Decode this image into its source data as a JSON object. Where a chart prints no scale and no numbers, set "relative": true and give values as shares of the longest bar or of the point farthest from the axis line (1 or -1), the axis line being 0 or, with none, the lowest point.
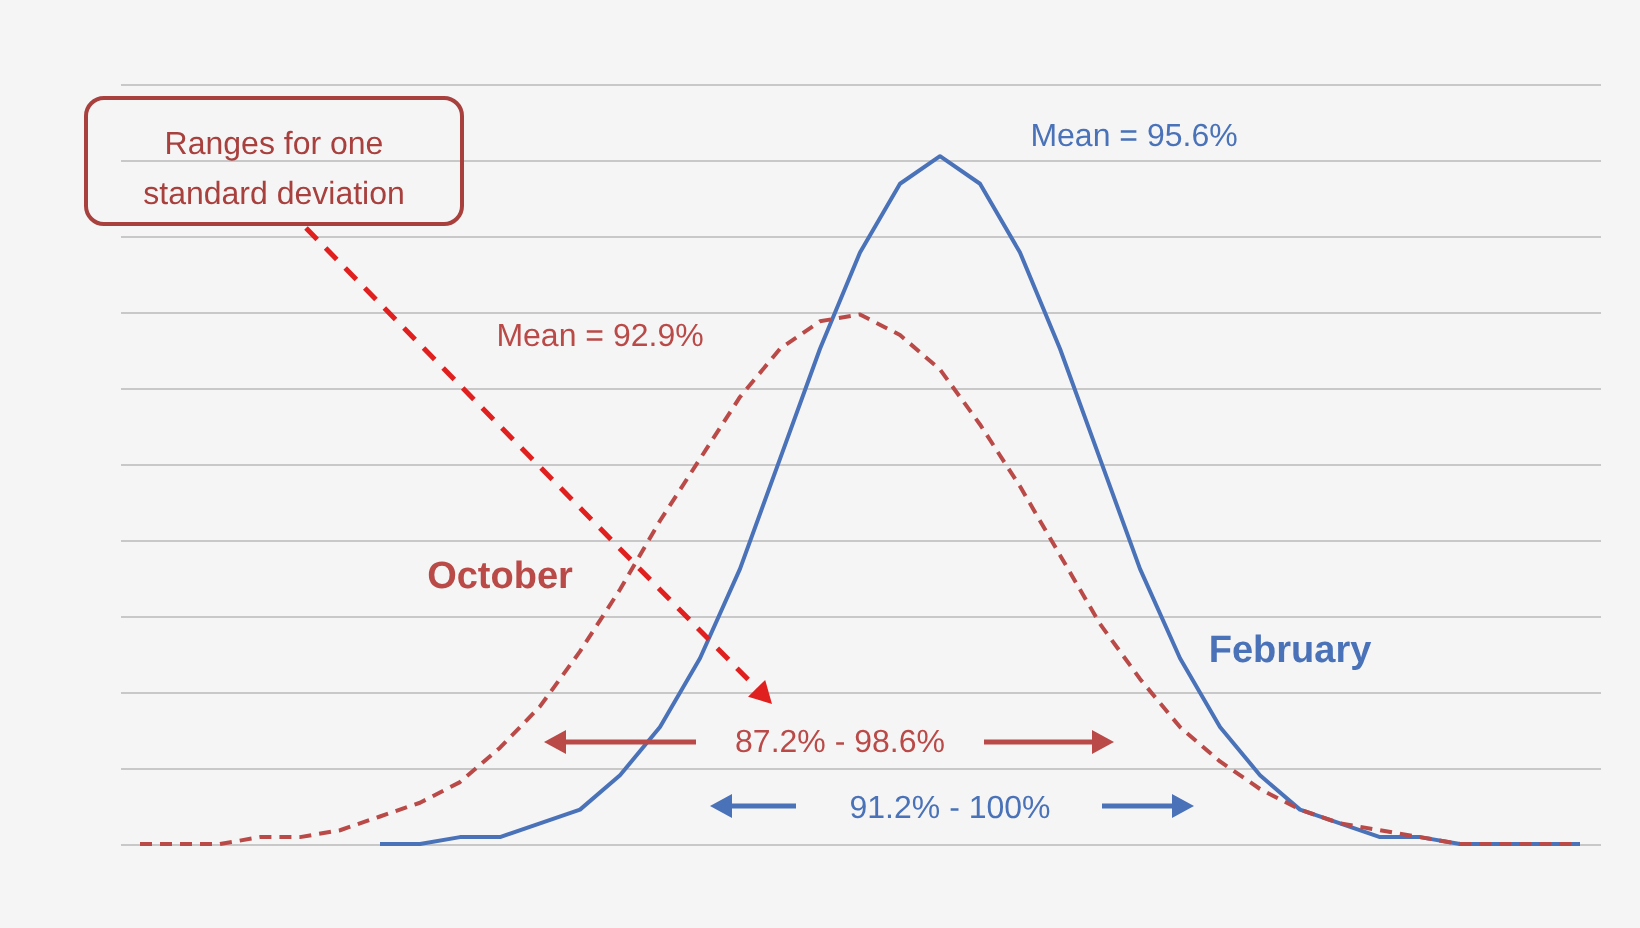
{
  "chart_data": {
    "type": "line",
    "relative": true,
    "grid": "y",
    "legend": false,
    "marker": "none",
    "categories": [
      null,
      null,
      null,
      null,
      null,
      null,
      null,
      null,
      null,
      null,
      null,
      null,
      null,
      null,
      null,
      null,
      null,
      null,
      null,
      null,
      null,
      null,
      null,
      null,
      null,
      null,
      null,
      null,
      null,
      null,
      null,
      null,
      null,
      null,
      null,
      null,
      null
    ],
    "series": [
      {
        "name": "October",
        "color": "#b94a48",
        "line_style": "dashed",
        "values": [
          0.0,
          0.0,
          0.0,
          0.01,
          0.01,
          0.02,
          0.04,
          0.06,
          0.09,
          0.14,
          0.2,
          0.28,
          0.37,
          0.47,
          0.56,
          0.65,
          0.72,
          0.76,
          0.77,
          0.74,
          0.69,
          0.61,
          0.52,
          0.42,
          0.32,
          0.24,
          0.17,
          0.12,
          0.08,
          0.05,
          0.03,
          0.02,
          0.01,
          0.0,
          0.0,
          0.0,
          0.0
        ]
      },
      {
        "name": "February",
        "color": "#4a72b8",
        "line_style": "solid",
        "values": [
          null,
          null,
          null,
          null,
          null,
          null,
          0.0,
          0.0,
          0.01,
          0.01,
          0.03,
          0.05,
          0.1,
          0.17,
          0.27,
          0.4,
          0.56,
          0.72,
          0.86,
          0.96,
          1,
          0.96,
          0.86,
          0.72,
          0.56,
          0.4,
          0.27,
          0.17,
          0.1,
          0.05,
          0.03,
          0.01,
          0.01,
          0.0,
          0.0,
          0.0,
          0.0
        ]
      }
    ],
    "annotations": [
      "Mean = 95.6%",
      "Mean = 92.9%",
      "87.2% - 98.6%",
      "91.2% - 100%",
      "Ranges for one standard deviation"
    ]
  }
}
